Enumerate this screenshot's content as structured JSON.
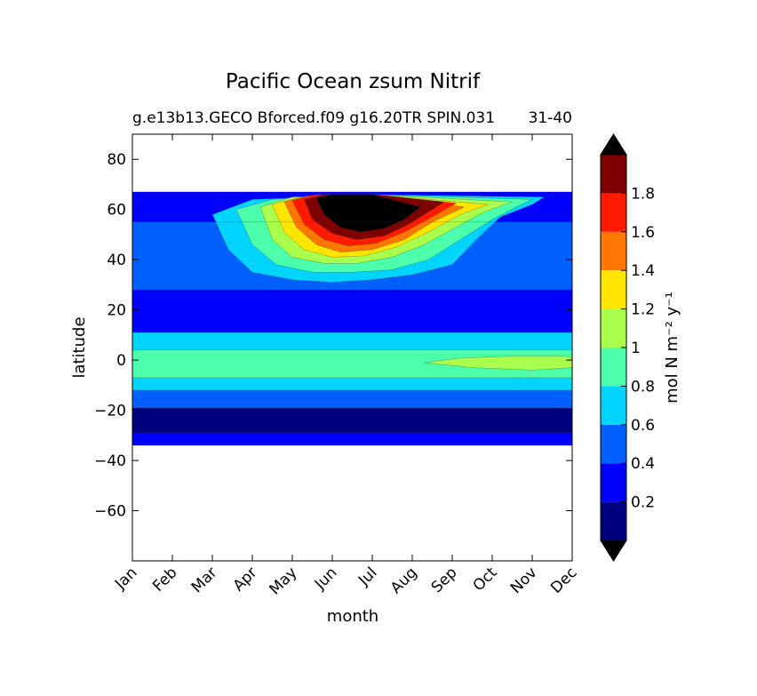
{
  "chart_data": {
    "type": "heatmap",
    "title": "Pacific Ocean zsum Nitrif",
    "subtitle": "g.e13b13.GECO Bforced.f09 g16.20TR SPIN.031",
    "subtitle_right": "31-40",
    "xlabel": "month",
    "ylabel": "latitude",
    "x_categories": [
      "Jan",
      "Feb",
      "Mar",
      "Apr",
      "May",
      "Jun",
      "Jul",
      "Aug",
      "Sep",
      "Oct",
      "Nov",
      "Dec"
    ],
    "y_ticks": [
      80,
      60,
      40,
      20,
      0,
      -20,
      -40,
      -60
    ],
    "ylim": [
      -80,
      90
    ],
    "colorbar": {
      "label": "mol N m⁻² y⁻¹",
      "tick_labels": [
        "0.2",
        "0.4",
        "0.6",
        "0.8",
        "1",
        "1.2",
        "1.4",
        "1.6",
        "1.8"
      ],
      "levels": [
        0.2,
        0.4,
        0.6,
        0.8,
        1.0,
        1.2,
        1.4,
        1.6,
        1.8
      ],
      "colors": [
        "#00007f",
        "#0000ff",
        "#0060ff",
        "#00d4ff",
        "#4cffaa",
        "#aaff4c",
        "#ffe500",
        "#ff7700",
        "#ff1a00",
        "#7f0000"
      ],
      "under_color": "#000000",
      "over_color": "#000000"
    },
    "data_extent_lat": [
      -34,
      67
    ],
    "bands": [
      {
        "lat_min": -34,
        "lat_max": -29,
        "value": 0.3
      },
      {
        "lat_min": -29,
        "lat_max": -19,
        "value": 0.15
      },
      {
        "lat_min": -19,
        "lat_max": -12,
        "value": 0.5
      },
      {
        "lat_min": -12,
        "lat_max": -7,
        "value": 0.7
      },
      {
        "lat_min": -7,
        "lat_max": 4,
        "value": 0.9
      },
      {
        "lat_min": 4,
        "lat_max": 11,
        "value": 0.7
      },
      {
        "lat_min": 11,
        "lat_max": 28,
        "value": 0.3
      },
      {
        "lat_min": 28,
        "lat_max": 55,
        "value": 0.5
      },
      {
        "lat_min": 55,
        "lat_max": 67,
        "value": 0.3
      }
    ],
    "peak": {
      "month": "Jun",
      "lat": 55,
      "value": 2.0
    }
  }
}
